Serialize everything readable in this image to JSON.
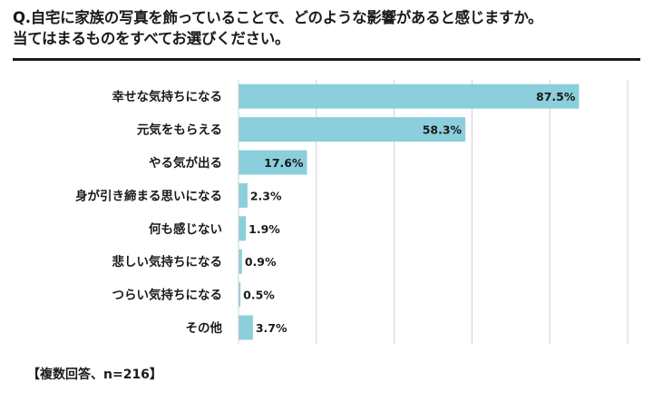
{
  "title_lines": [
    "Q.自宅に家族の写真を飾っていることで、どのような影響があると感じますか。",
    "当てはまるものをすべてお選びください。"
  ],
  "note": "【複数回答、n=216】",
  "colors": {
    "bar": "#8ccfdc",
    "text": "#1a1a1a",
    "grid": "#d0d0d0",
    "divider": "#1a1a1a"
  },
  "chart_data": {
    "type": "bar",
    "orientation": "horizontal",
    "categories": [
      "幸せな気持ちになる",
      "元気をもらえる",
      "やる気が出る",
      "身が引き締まる思いになる",
      "何も感じない",
      "悲しい気持ちになる",
      "つらい気持ちになる",
      "その他"
    ],
    "values": [
      87.5,
      58.3,
      17.6,
      2.3,
      1.9,
      0.9,
      0.5,
      3.7
    ],
    "data_labels": [
      "87.5%",
      "58.3%",
      "17.6%",
      "2.3%",
      "1.9%",
      "0.9%",
      "0.5%",
      "3.7%"
    ],
    "xlim": [
      0,
      100
    ],
    "grid": true,
    "tick_labels_shown": false
  }
}
